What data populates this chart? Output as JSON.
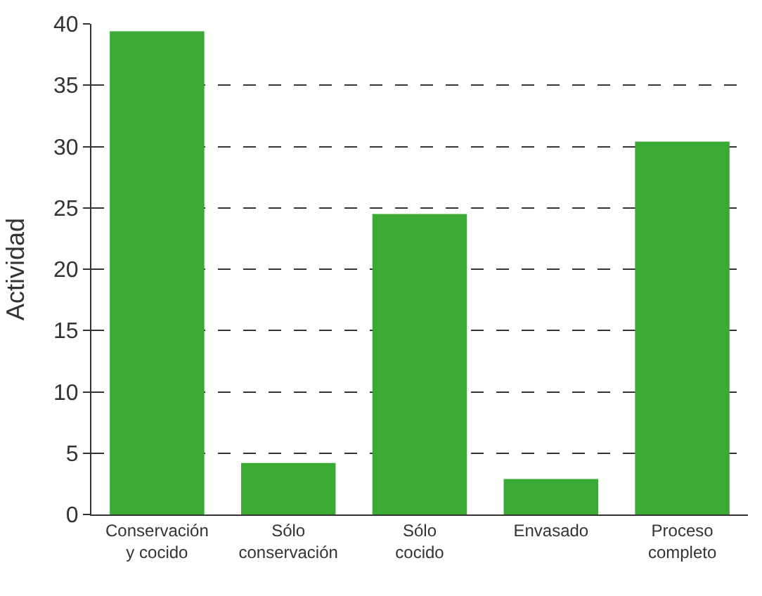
{
  "chart_data": {
    "type": "bar",
    "ylabel": "Actividad",
    "categories": [
      "Conservación\ny cocido",
      "Sólo\nconservación",
      "Sólo\ncocido",
      "Envasado",
      "Proceso\ncompleto"
    ],
    "values": [
      39.4,
      4.2,
      24.5,
      2.9,
      30.4
    ],
    "color": "#3aaa35",
    "ylim": [
      0,
      40
    ],
    "yticks": [
      0,
      5,
      10,
      15,
      20,
      25,
      30,
      35,
      40
    ],
    "grid": "y"
  }
}
